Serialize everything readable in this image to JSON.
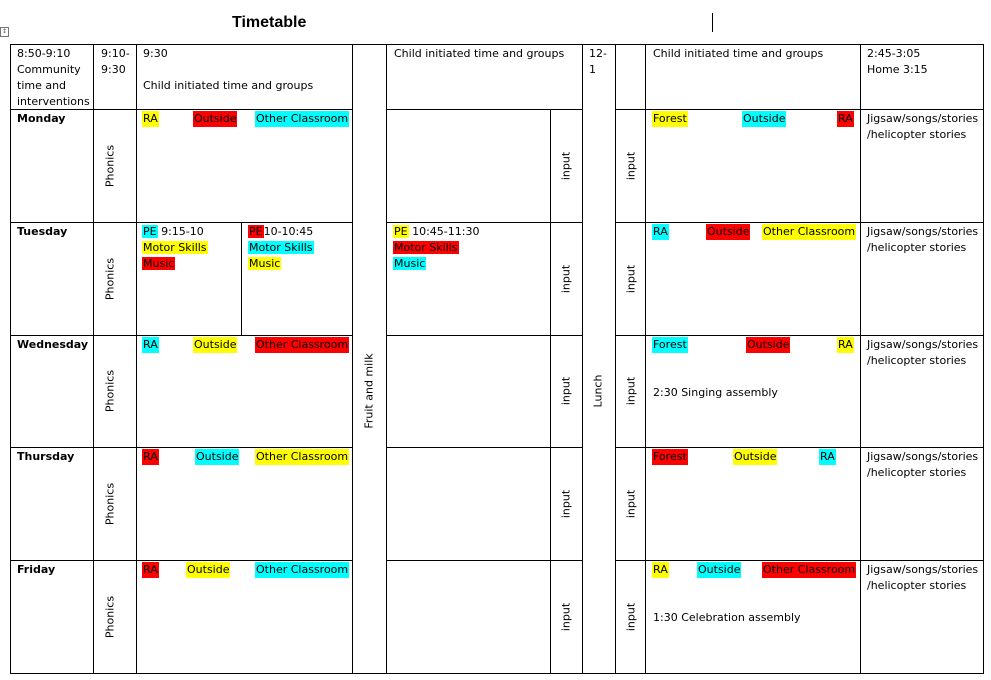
{
  "document": {
    "title": "Timetable",
    "header": {
      "col1_line1": "8:50-9:10",
      "col1_line2": "Community time and interventions",
      "col2": "9:10-9:30",
      "col3_time": "9:30",
      "col3_text": "Child initiated time and groups",
      "col5": "Child initiated time and groups",
      "col6": "12-1",
      "col8": "Child initiated time and groups",
      "col9_line1": "2:45-3:05",
      "col9_line2": "Home 3:15"
    },
    "vertical_labels": {
      "phonics": "Phonics",
      "fruit": "Fruit and milk",
      "input": "input",
      "lunch": "Lunch"
    },
    "days": {
      "monday": "Monday",
      "tuesday": "Tuesday",
      "wednesday": "Wednesday",
      "thursday": "Thursday",
      "friday": "Friday"
    },
    "morning": {
      "monday": [
        "RA",
        "Outside",
        "Other Classroom"
      ],
      "wednesday": [
        "RA",
        "Outside",
        "Other Classroom"
      ],
      "thursday": [
        "RA",
        "Outside",
        "Other Classroom"
      ],
      "friday": [
        "RA",
        "Outside",
        "Other Classroom"
      ],
      "tuesday_a": {
        "pe": "PE",
        "time": " 9:15-10",
        "motor": "Motor Skills",
        "music": "Music"
      },
      "tuesday_b": {
        "pe": "PE",
        "time": "10-10:45",
        "motor": "Motor Skills",
        "music": "Music"
      },
      "tuesday_c": {
        "pe": "PE",
        "time": " 10:45-11:30",
        "motor": "Motor Skills",
        "music": "Music"
      }
    },
    "afternoon": {
      "monday": [
        "Forest",
        "Outside",
        "RA"
      ],
      "tuesday": [
        "RA",
        "Outside",
        "Other Classroom"
      ],
      "wednesday": [
        "Forest",
        "Outside",
        "RA"
      ],
      "wednesday_note": "2:30 Singing assembly",
      "thursday": [
        "Forest",
        "Outside",
        "RA"
      ],
      "friday": [
        "RA",
        "Outside",
        "Other Classroom"
      ],
      "friday_note": "1:30 Celebration assembly"
    },
    "home_activity": {
      "line1": "Jigsaw/songs/stories",
      "line2": "/helicopter stories"
    },
    "highlight_colors": {
      "yellow": "#ffff00",
      "red": "#ff0000",
      "cyan": "#00ffff"
    }
  }
}
